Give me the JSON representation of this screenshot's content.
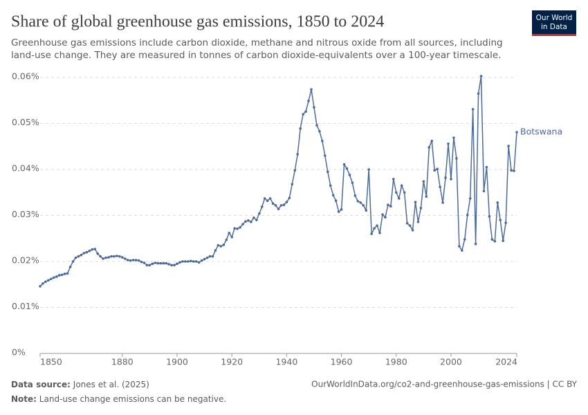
{
  "chart_data": {
    "type": "line",
    "title": "Share of global greenhouse gas emissions, 1850 to 2024",
    "subtitle_lines": [
      "Greenhouse gas emissions include carbon dioxide, methane and nitrous oxide from all sources, including",
      "land-use change. They are measured in tonnes of carbon dioxide-equivalents over a 100-year timescale."
    ],
    "logo_lines": [
      "Our World",
      "in Data"
    ],
    "source_label": "Data source:",
    "source": "Jones et al. (2025)",
    "url": "OurWorldInData.org/co2-and-greenhouse-gas-emissions | CC BY",
    "note_label": "Note:",
    "note": "Land-use change emissions can be negative.",
    "x": [
      1850,
      1851,
      1852,
      1853,
      1854,
      1855,
      1856,
      1857,
      1858,
      1859,
      1860,
      1861,
      1862,
      1863,
      1864,
      1865,
      1866,
      1867,
      1868,
      1869,
      1870,
      1871,
      1872,
      1873,
      1874,
      1875,
      1876,
      1877,
      1878,
      1879,
      1880,
      1881,
      1882,
      1883,
      1884,
      1885,
      1886,
      1887,
      1888,
      1889,
      1890,
      1891,
      1892,
      1893,
      1894,
      1895,
      1896,
      1897,
      1898,
      1899,
      1900,
      1901,
      1902,
      1903,
      1904,
      1905,
      1906,
      1907,
      1908,
      1909,
      1910,
      1911,
      1912,
      1913,
      1914,
      1915,
      1916,
      1917,
      1918,
      1919,
      1920,
      1921,
      1922,
      1923,
      1924,
      1925,
      1926,
      1927,
      1928,
      1929,
      1930,
      1931,
      1932,
      1933,
      1934,
      1935,
      1936,
      1937,
      1938,
      1939,
      1940,
      1941,
      1942,
      1943,
      1944,
      1945,
      1946,
      1947,
      1948,
      1949,
      1950,
      1951,
      1952,
      1953,
      1954,
      1955,
      1956,
      1957,
      1958,
      1959,
      1960,
      1961,
      1962,
      1963,
      1964,
      1965,
      1966,
      1967,
      1968,
      1969,
      1970,
      1971,
      1972,
      1973,
      1974,
      1975,
      1976,
      1977,
      1978,
      1979,
      1980,
      1981,
      1982,
      1983,
      1984,
      1985,
      1986,
      1987,
      1988,
      1989,
      1990,
      1991,
      1992,
      1993,
      1994,
      1995,
      1996,
      1997,
      1998,
      1999,
      2000,
      2001,
      2002,
      2003,
      2004,
      2005,
      2006,
      2007,
      2008,
      2009,
      2010,
      2011,
      2012,
      2013,
      2014,
      2015,
      2016,
      2017,
      2018,
      2019,
      2020,
      2021,
      2022,
      2023,
      2024
    ],
    "series": [
      {
        "name": "Botswana",
        "color": "#4c6a9c",
        "values": [
          0.0146,
          0.0152,
          0.0156,
          0.0159,
          0.0162,
          0.0165,
          0.0167,
          0.017,
          0.0171,
          0.0173,
          0.0174,
          0.0188,
          0.02,
          0.0208,
          0.0211,
          0.0214,
          0.0218,
          0.022,
          0.0223,
          0.0226,
          0.0227,
          0.0217,
          0.0211,
          0.0206,
          0.0208,
          0.0209,
          0.0211,
          0.0211,
          0.0212,
          0.0211,
          0.0209,
          0.0206,
          0.0203,
          0.0202,
          0.0203,
          0.0203,
          0.0202,
          0.0199,
          0.0197,
          0.0192,
          0.0192,
          0.0195,
          0.0197,
          0.0196,
          0.0196,
          0.0196,
          0.0196,
          0.0194,
          0.0192,
          0.0192,
          0.0195,
          0.0198,
          0.02,
          0.02,
          0.02,
          0.0201,
          0.02,
          0.02,
          0.0198,
          0.0202,
          0.0205,
          0.0208,
          0.0211,
          0.0211,
          0.0224,
          0.0235,
          0.0233,
          0.0236,
          0.0247,
          0.0262,
          0.0253,
          0.0272,
          0.0271,
          0.0274,
          0.0281,
          0.0287,
          0.0289,
          0.0286,
          0.0295,
          0.029,
          0.0304,
          0.0319,
          0.0337,
          0.0332,
          0.0337,
          0.0326,
          0.0322,
          0.0314,
          0.0322,
          0.0323,
          0.0329,
          0.0338,
          0.0368,
          0.0398,
          0.0433,
          0.0489,
          0.052,
          0.0526,
          0.0549,
          0.0574,
          0.0535,
          0.0496,
          0.0483,
          0.0462,
          0.043,
          0.0395,
          0.0365,
          0.0344,
          0.0332,
          0.0308,
          0.0313,
          0.0411,
          0.0402,
          0.0388,
          0.0371,
          0.0343,
          0.0331,
          0.0328,
          0.0322,
          0.0311,
          0.04,
          0.026,
          0.0272,
          0.0278,
          0.0262,
          0.0302,
          0.0296,
          0.0323,
          0.032,
          0.0379,
          0.035,
          0.0337,
          0.0365,
          0.035,
          0.0283,
          0.0278,
          0.0268,
          0.0329,
          0.0286,
          0.0316,
          0.0374,
          0.0341,
          0.0448,
          0.0462,
          0.0398,
          0.0401,
          0.0362,
          0.0328,
          0.0382,
          0.0456,
          0.0379,
          0.0469,
          0.0424,
          0.0233,
          0.0224,
          0.0248,
          0.0301,
          0.0337,
          0.0531,
          0.0238,
          0.0565,
          0.0603,
          0.0353,
          0.0405,
          0.0298,
          0.0248,
          0.0244,
          0.0328,
          0.029,
          0.0245,
          0.0284,
          0.0451,
          0.0398,
          0.0397,
          0.0481
        ]
      }
    ],
    "xlim": [
      1850,
      2024
    ],
    "xticks": [
      1850,
      1880,
      1900,
      1920,
      1940,
      1960,
      1980,
      2000,
      2024
    ],
    "ylim": [
      0,
      0.06
    ],
    "yticks": [
      {
        "value": 0,
        "label": "0%"
      },
      {
        "value": 0.01,
        "label": "0.01%"
      },
      {
        "value": 0.02,
        "label": "0.02%"
      },
      {
        "value": 0.03,
        "label": "0.03%"
      },
      {
        "value": 0.04,
        "label": "0.04%"
      },
      {
        "value": 0.05,
        "label": "0.05%"
      },
      {
        "value": 0.06,
        "label": "0.06%"
      }
    ],
    "grid": true
  }
}
